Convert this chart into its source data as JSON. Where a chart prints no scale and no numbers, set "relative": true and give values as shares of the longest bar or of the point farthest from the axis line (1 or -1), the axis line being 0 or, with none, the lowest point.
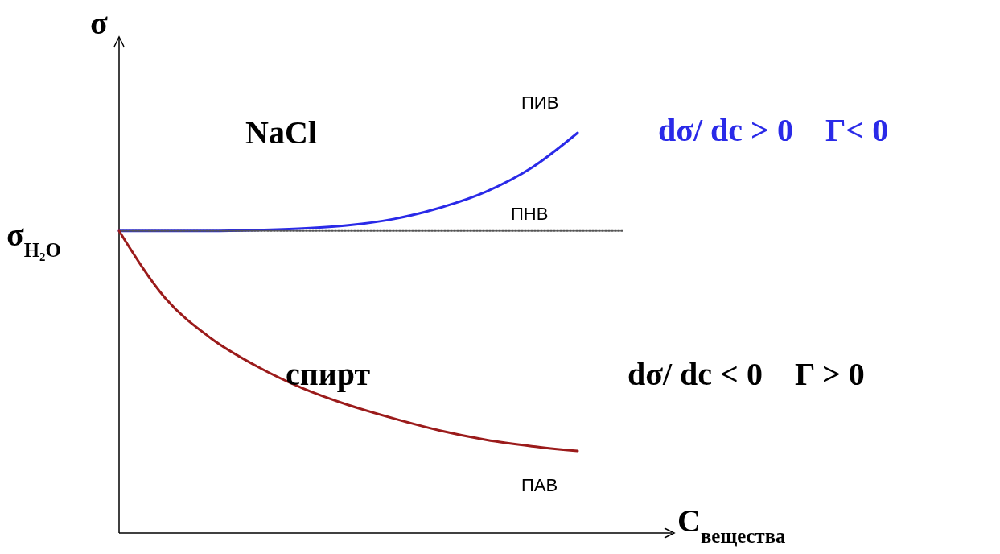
{
  "chart_data": {
    "type": "line",
    "relative": true,
    "ylabel": "σ",
    "xlabel": "C$_{вещества}$",
    "categories": [
      null,
      null,
      null,
      null,
      null,
      null,
      null,
      null,
      null,
      null,
      null,
      null
    ],
    "series": [
      {
        "name": "ПИВ",
        "color": "#2a2ae8",
        "values": [
          0.755,
          0.755,
          0.755,
          0.757,
          0.761,
          0.769,
          0.785,
          0.813,
          0.853,
          0.913,
          1,
          null
        ]
      },
      {
        "name": "ПНВ",
        "color": "#555555",
        "line_style": "dotted",
        "values": [
          0.755,
          0.755,
          0.755,
          0.755,
          0.755,
          0.755,
          0.755,
          0.755,
          0.755,
          0.755,
          0.755,
          0.755
        ]
      },
      {
        "name": "ПАВ",
        "color": "#9b1b1b",
        "values": [
          0.755,
          0.588,
          0.487,
          0.417,
          0.362,
          0.32,
          0.286,
          0.256,
          0.233,
          0.217,
          0.205,
          null
        ]
      }
    ],
    "annotations": [
      "σ$_{H₂O}$",
      "NaCl",
      "спирт",
      "dσ/ dc > 0    Γ< 0",
      "dσ/ dc < 0    Γ > 0"
    ]
  }
}
